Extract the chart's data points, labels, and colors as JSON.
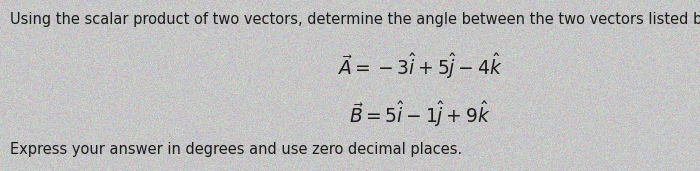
{
  "background_color": "#c8c8c8",
  "text_color": "#1a1a1a",
  "header_text": "Using the scalar product of two vectors, determine the angle between the two vectors listed below:",
  "vector_A": "$\\vec{A} = -3\\hat{i} + 5\\hat{j} - 4\\hat{k}$",
  "vector_B": "$\\vec{B} = 5\\hat{i} - 1\\hat{j} + 9\\hat{k}$",
  "footer_text": "Express your answer in degrees and use zero decimal places.",
  "header_fontsize": 10.5,
  "vector_fontsize": 13.5,
  "footer_fontsize": 10.5,
  "fig_width": 7.0,
  "fig_height": 1.71,
  "noise_alpha": 0.18
}
